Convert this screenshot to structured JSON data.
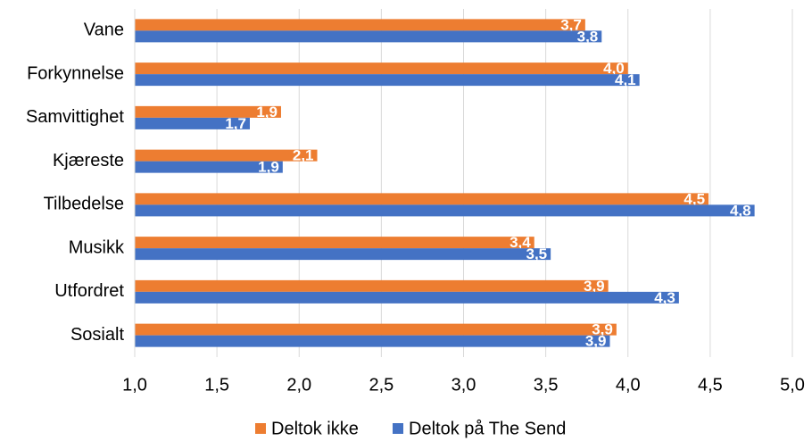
{
  "chart_data": {
    "type": "hbar",
    "categories": [
      "Vane",
      "Forkynnelse",
      "Samvittighet",
      "Kjæreste",
      "Tilbedelse",
      "Musikk",
      "Utfordret",
      "Sosialt"
    ],
    "series": [
      {
        "name": "Deltok ikke",
        "color": "#ed7d31",
        "values": [
          3.74,
          4.0,
          1.89,
          2.11,
          4.49,
          3.43,
          3.88,
          3.93
        ],
        "value_labels": [
          "3,7",
          "4,0",
          "1,9",
          "2,1",
          "4,5",
          "3,4",
          "3,9",
          "3,9"
        ]
      },
      {
        "name": "Deltok på The Send",
        "color": "#4472c4",
        "values": [
          3.84,
          4.07,
          1.7,
          1.9,
          4.77,
          3.53,
          4.31,
          3.89
        ],
        "value_labels": [
          "3,8",
          "4,1",
          "1,7",
          "1,9",
          "4,8",
          "3,5",
          "4,3",
          "3,9"
        ]
      }
    ],
    "xlim": [
      1.0,
      5.0
    ],
    "xticks": [
      {
        "value": 1.0,
        "label": "1,0"
      },
      {
        "value": 1.5,
        "label": "1,5"
      },
      {
        "value": 2.0,
        "label": "2,0"
      },
      {
        "value": 2.5,
        "label": "2,5"
      },
      {
        "value": 3.0,
        "label": "3,0"
      },
      {
        "value": 3.5,
        "label": "3,5"
      },
      {
        "value": 4.0,
        "label": "4,0"
      },
      {
        "value": 4.5,
        "label": "4,5"
      },
      {
        "value": 5.0,
        "label": "5,0"
      }
    ],
    "grid": true,
    "legend": "bottom"
  }
}
